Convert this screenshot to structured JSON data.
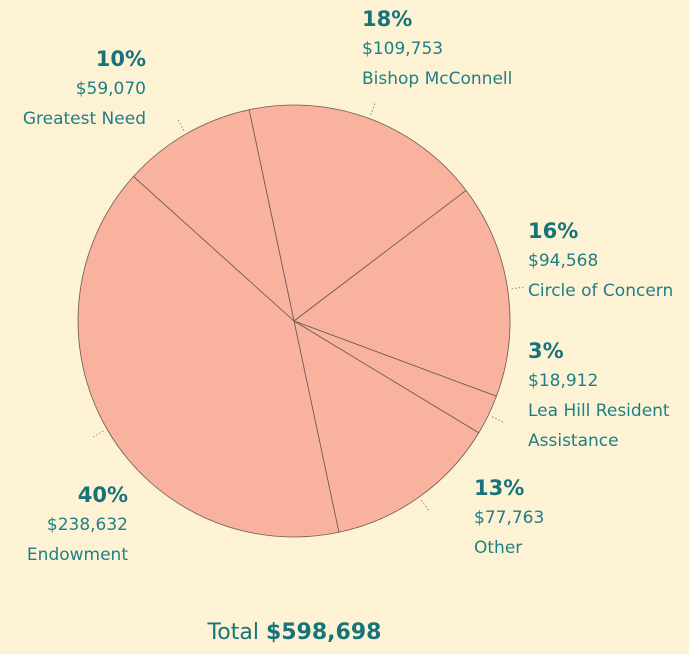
{
  "chart_data": {
    "type": "pie",
    "categories": [
      "Bishop McConnell",
      "Circle of Concern",
      "Lea Hill Resident Assistance",
      "Other",
      "Endowment",
      "Greatest Need"
    ],
    "values": [
      18,
      16,
      3,
      13,
      40,
      10
    ],
    "value_labels": [
      "18%",
      "16%",
      "3%",
      "13%",
      "40%",
      "10%"
    ],
    "amounts": [
      109753,
      94568,
      18912,
      77763,
      238632,
      59070
    ],
    "amount_labels": [
      "$109,753",
      "$94,568",
      "$18,912",
      "$77,763",
      "$238,632",
      "$59,070"
    ],
    "color": "#f8b29e",
    "total_text": "Total",
    "total": 598698,
    "total_label": "$598,698"
  }
}
